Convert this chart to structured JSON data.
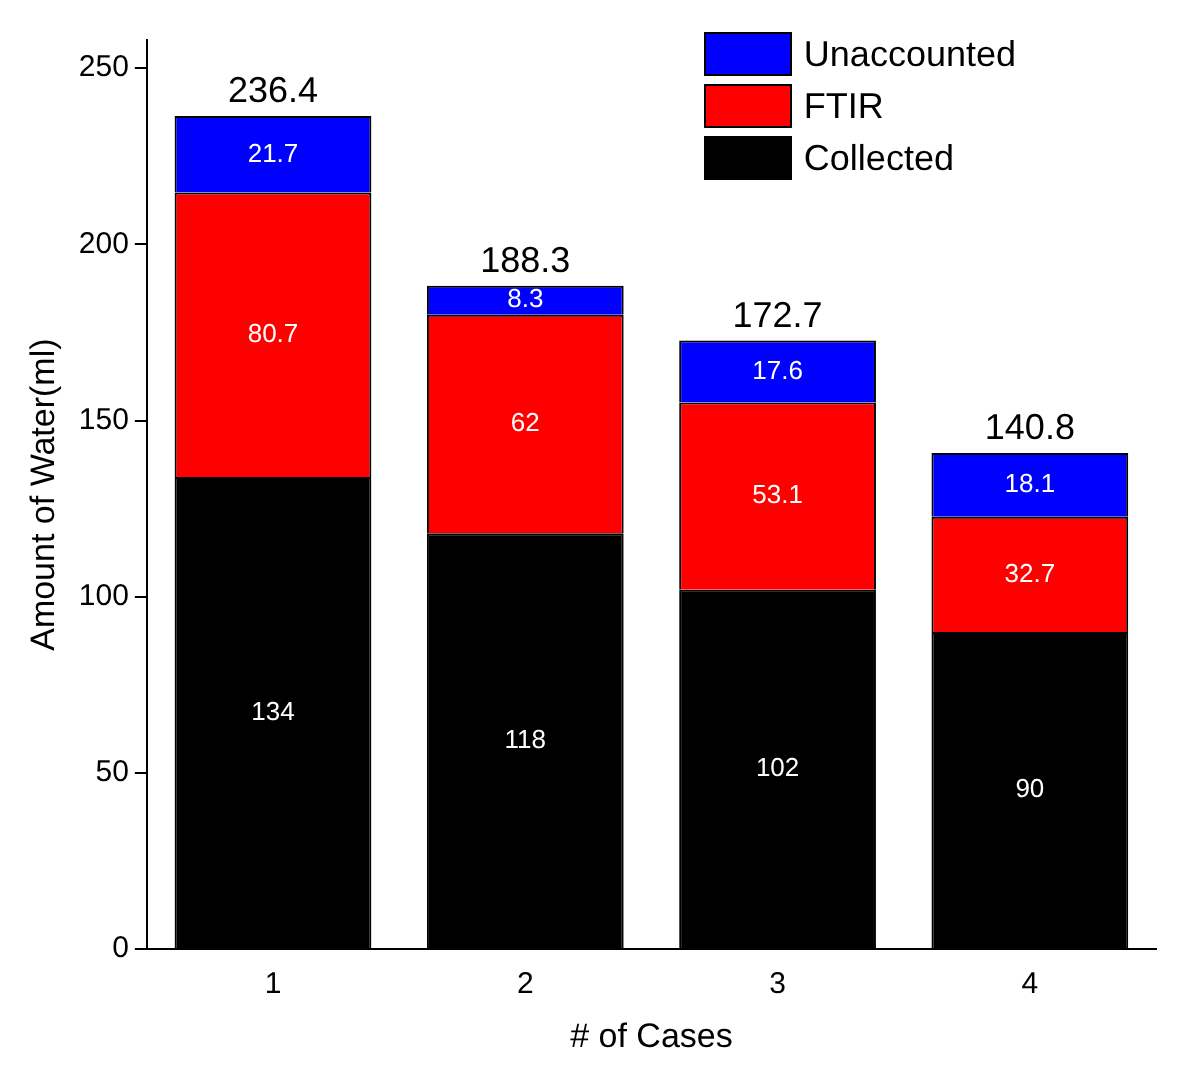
{
  "chart_data": {
    "type": "bar",
    "stacked": true,
    "xlabel": "# of Cases",
    "ylabel": "Amount of Water(ml)",
    "categories": [
      "1",
      "2",
      "3",
      "4"
    ],
    "series": [
      {
        "name": "Collected",
        "color": "#000000",
        "values": [
          134,
          118,
          102,
          90
        ]
      },
      {
        "name": "FTIR",
        "color": "#ff0000",
        "values": [
          80.7,
          62,
          53.1,
          32.7
        ]
      },
      {
        "name": "Unaccounted",
        "color": "#0000ff",
        "values": [
          21.7,
          8.3,
          17.6,
          18.1
        ]
      }
    ],
    "data_labels": true,
    "totals": [
      "236.4",
      "188.3",
      "172.7",
      "140.8"
    ],
    "ylim": [
      0,
      258
    ],
    "yticks": [
      0,
      50,
      100,
      150,
      200,
      250
    ],
    "grid": false,
    "legend": "top right"
  }
}
